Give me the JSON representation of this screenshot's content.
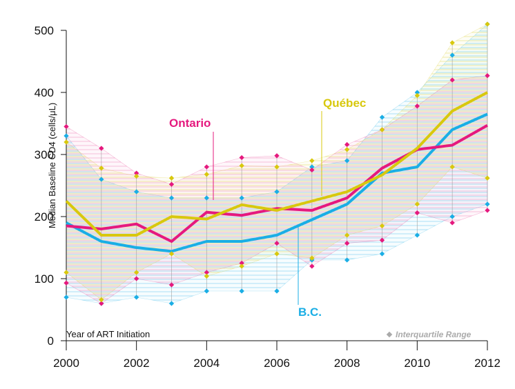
{
  "chart_data": {
    "type": "line",
    "title": "",
    "xlabel": "Year of ART Initiation",
    "ylabel": "Median Baseline CD4 (cells/μL)",
    "xlim": [
      2000,
      2012
    ],
    "ylim": [
      0,
      500
    ],
    "x_ticks": [
      "2000",
      "2002",
      "2004",
      "2006",
      "2008",
      "2010",
      "2012"
    ],
    "y_ticks": [
      "0",
      "100",
      "200",
      "300",
      "400",
      "500"
    ],
    "x": [
      2000,
      2001,
      2002,
      2003,
      2004,
      2005,
      2006,
      2007,
      2008,
      2009,
      2010,
      2011,
      2012
    ],
    "series": [
      {
        "name": "B.C.",
        "color": "#1aaee5",
        "values": [
          190,
          160,
          150,
          144,
          160,
          160,
          170,
          195,
          220,
          270,
          280,
          340,
          365
        ],
        "q1": [
          70,
          60,
          70,
          60,
          80,
          80,
          80,
          130,
          130,
          140,
          170,
          200,
          220
        ],
        "q3": [
          330,
          260,
          240,
          230,
          230,
          230,
          240,
          280,
          290,
          360,
          400,
          460,
          510
        ]
      },
      {
        "name": "Ontario",
        "color": "#e5197e",
        "values": [
          185,
          180,
          188,
          160,
          207,
          202,
          213,
          210,
          230,
          278,
          308,
          315,
          347
        ],
        "q1": [
          93,
          60,
          100,
          90,
          110,
          125,
          157,
          120,
          157,
          162,
          206,
          190,
          210
        ],
        "q3": [
          345,
          310,
          270,
          252,
          280,
          295,
          298,
          275,
          316,
          340,
          378,
          420,
          427
        ]
      },
      {
        "name": "Québec",
        "color": "#d8c80d",
        "values": [
          225,
          170,
          170,
          200,
          196,
          219,
          210,
          225,
          240,
          267,
          310,
          370,
          400
        ],
        "q1": [
          110,
          66,
          110,
          140,
          104,
          120,
          140,
          133,
          170,
          185,
          220,
          280,
          262
        ],
        "q3": [
          320,
          278,
          265,
          262,
          268,
          282,
          280,
          290,
          308,
          340,
          395,
          480,
          510
        ]
      }
    ],
    "legend": {
      "label": "Interquartile Range",
      "position": "bottom-right"
    },
    "grid": false
  }
}
